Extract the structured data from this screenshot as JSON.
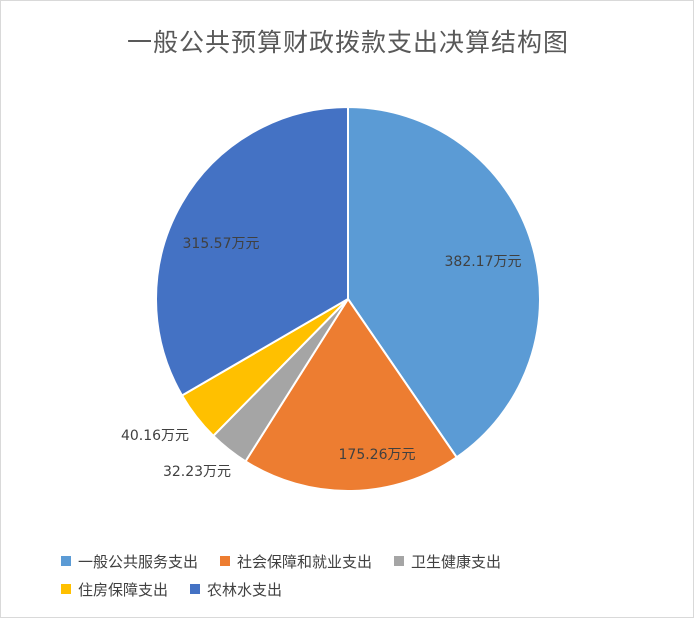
{
  "chart_data": {
    "type": "pie",
    "title": "一般公共预算财政拨款支出决算结构图",
    "unit_suffix": "万元",
    "slices": [
      {
        "name": "一般公共服务支出",
        "value": 382.17,
        "color": "#5B9BD5",
        "label": "382.17万元"
      },
      {
        "name": "社会保障和就业支出",
        "value": 175.26,
        "color": "#ED7D31",
        "label": "175.26万元"
      },
      {
        "name": "卫生健康支出",
        "value": 32.23,
        "color": "#A5A5A5",
        "label": "32.23万元"
      },
      {
        "name": "住房保障支出",
        "value": 40.16,
        "color": "#FFC000",
        "label": "40.16万元"
      },
      {
        "name": "农林水支出",
        "value": 315.57,
        "color": "#4472C4",
        "label": "315.57万元"
      }
    ],
    "legend_position": "bottom"
  }
}
